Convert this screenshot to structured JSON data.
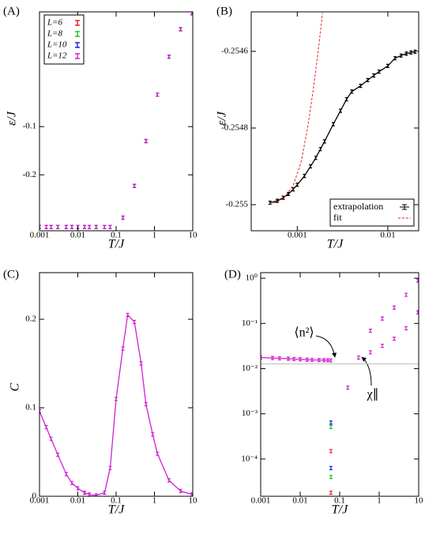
{
  "chart_data": [
    {
      "type": "scatter",
      "panel_label": "(A)",
      "xlabel": "T/J",
      "ylabel": "ε/J",
      "xscale": "log",
      "yscale": "linear",
      "xlim": [
        0.001,
        10
      ],
      "ylim": [
        -0.316,
        0.138
      ],
      "xticks": [
        0.001,
        0.01,
        0.1,
        1,
        10
      ],
      "yticks": [
        -0.2,
        -0.1
      ],
      "legend": "upper left",
      "series": [
        {
          "name": "L=6",
          "color": "#e8202a",
          "line": false,
          "x": [
            0.001,
            0.0015,
            0.002,
            0.003,
            0.005,
            0.007,
            0.01,
            0.015,
            0.02,
            0.03,
            0.05,
            0.07,
            0.15,
            0.3,
            0.6,
            1.2,
            2.4,
            4.8,
            9.5
          ],
          "values": [
            -0.308,
            -0.308,
            -0.308,
            -0.308,
            -0.308,
            -0.308,
            -0.308,
            -0.308,
            -0.308,
            -0.308,
            -0.308,
            -0.308,
            -0.289,
            -0.223,
            -0.13,
            -0.034,
            0.045,
            0.102,
            0.135
          ]
        },
        {
          "name": "L=8",
          "color": "#22c02a",
          "line": false,
          "x": [
            0.001,
            0.0015,
            0.002,
            0.003,
            0.005,
            0.007,
            0.01,
            0.015,
            0.02,
            0.03,
            0.05,
            0.07,
            0.15,
            0.3,
            0.6,
            1.2,
            2.4,
            4.8,
            9.5
          ],
          "values": [
            -0.308,
            -0.308,
            -0.308,
            -0.308,
            -0.308,
            -0.308,
            -0.308,
            -0.308,
            -0.308,
            -0.308,
            -0.308,
            -0.308,
            -0.289,
            -0.223,
            -0.13,
            -0.034,
            0.045,
            0.102,
            0.135
          ]
        },
        {
          "name": "L=10",
          "color": "#2020e0",
          "line": false,
          "x": [
            0.001,
            0.0015,
            0.002,
            0.003,
            0.005,
            0.007,
            0.01,
            0.015,
            0.02,
            0.03,
            0.05,
            0.07,
            0.15,
            0.3,
            0.6,
            1.2,
            2.4,
            4.8,
            9.5
          ],
          "values": [
            -0.308,
            -0.308,
            -0.308,
            -0.308,
            -0.308,
            -0.308,
            -0.308,
            -0.308,
            -0.308,
            -0.308,
            -0.308,
            -0.308,
            -0.289,
            -0.223,
            -0.13,
            -0.034,
            0.045,
            0.102,
            0.135
          ]
        },
        {
          "name": "L=12",
          "color": "#d020d0",
          "line": false,
          "x": [
            0.001,
            0.0015,
            0.002,
            0.003,
            0.005,
            0.007,
            0.01,
            0.015,
            0.02,
            0.03,
            0.05,
            0.07,
            0.15,
            0.3,
            0.6,
            1.2,
            2.4,
            4.8,
            9.5
          ],
          "values": [
            -0.308,
            -0.308,
            -0.308,
            -0.308,
            -0.308,
            -0.308,
            -0.308,
            -0.308,
            -0.308,
            -0.308,
            -0.308,
            -0.308,
            -0.289,
            -0.223,
            -0.13,
            -0.034,
            0.045,
            0.102,
            0.135
          ]
        }
      ]
    },
    {
      "type": "scatter",
      "panel_label": "(B)",
      "xlabel": "T/J",
      "ylabel": "ε/J",
      "xscale": "log",
      "yscale": "linear",
      "xlim": [
        0.00031,
        0.0219
      ],
      "ylim": [
        -0.255068,
        -0.254497
      ],
      "xticks": [
        0.001,
        0.01
      ],
      "yticks": [
        -0.255,
        -0.2548,
        -0.2546
      ],
      "legend": "lower right",
      "series": [
        {
          "name": "extrapolation",
          "color": "#000000",
          "line": true,
          "markers": true,
          "x": [
            0.0005,
            0.0006,
            0.0007,
            0.0008,
            0.0009,
            0.001,
            0.0012,
            0.0014,
            0.0016,
            0.0018,
            0.002,
            0.0025,
            0.003,
            0.0035,
            0.004,
            0.005,
            0.006,
            0.007,
            0.008,
            0.01,
            0.012,
            0.014,
            0.016,
            0.018,
            0.02
          ],
          "values": [
            -0.254995,
            -0.25499,
            -0.254982,
            -0.254972,
            -0.25496,
            -0.254948,
            -0.254925,
            -0.2549,
            -0.254878,
            -0.254855,
            -0.254835,
            -0.25479,
            -0.254755,
            -0.254725,
            -0.254705,
            -0.25469,
            -0.254675,
            -0.254663,
            -0.254653,
            -0.254638,
            -0.254618,
            -0.254611,
            -0.254606,
            -0.254603,
            -0.254601
          ]
        },
        {
          "name": "fit",
          "color": "#e8202a",
          "line": true,
          "markers": false,
          "dash": true,
          "x": [
            0.0005,
            0.0007,
            0.0009,
            0.0011,
            0.0013,
            0.0015,
            0.0017,
            0.0019
          ],
          "values": [
            -0.255,
            -0.254985,
            -0.25495,
            -0.25489,
            -0.2548,
            -0.2547,
            -0.2546,
            -0.2545
          ]
        }
      ]
    },
    {
      "type": "scatter",
      "panel_label": "(C)",
      "xlabel": "T/J",
      "ylabel": "C",
      "xscale": "log",
      "yscale": "linear",
      "xlim": [
        0.001,
        10
      ],
      "ylim": [
        0,
        0.2527
      ],
      "xticks": [
        0.001,
        0.01,
        0.1,
        1,
        10
      ],
      "yticks": [
        0,
        0.1,
        0.2
      ],
      "series": [
        {
          "color": "#d020d0",
          "line": true,
          "markers": true,
          "x": [
            0.001,
            0.0015,
            0.002,
            0.003,
            0.005,
            0.007,
            0.01,
            0.015,
            0.02,
            0.03,
            0.05,
            0.07,
            0.1,
            0.15,
            0.2,
            0.3,
            0.45,
            0.6,
            0.9,
            1.2,
            2.4,
            4.8,
            9.5
          ],
          "values": [
            0.096,
            0.078,
            0.065,
            0.047,
            0.025,
            0.015,
            0.009,
            0.004,
            0.002,
            0.001,
            0.004,
            0.032,
            0.11,
            0.167,
            0.205,
            0.197,
            0.15,
            0.104,
            0.07,
            0.048,
            0.018,
            0.006,
            0.002
          ]
        }
      ]
    },
    {
      "type": "scatter",
      "panel_label": "(D)",
      "xlabel": "T/J",
      "xscale": "log",
      "yscale": "log",
      "xlim": [
        0.001,
        10
      ],
      "ylim": [
        1.5e-05,
        1.33
      ],
      "xticks": [
        0.001,
        0.01,
        0.1,
        1,
        10
      ],
      "yticks": [
        {
          "value": 0.0001,
          "label": "10⁻⁴"
        },
        {
          "value": 0.001,
          "label": "10⁻³"
        },
        {
          "value": 0.01,
          "label": "10⁻²"
        },
        {
          "value": 0.1,
          "label": "10⁻¹"
        },
        {
          "value": 1,
          "label": "10⁰"
        }
      ],
      "hline": {
        "value": 0.0128,
        "color": "#bbbbbb"
      },
      "annotations": [
        {
          "text": "⟨n²⟩"
        },
        {
          "text": "χ∥"
        }
      ],
      "series": [
        {
          "color": "#d020d0",
          "line": true,
          "markers": true,
          "x": [
            0.001,
            0.002,
            0.003,
            0.005,
            0.007,
            0.01,
            0.015,
            0.02,
            0.03,
            0.04,
            0.05,
            0.06
          ],
          "values": [
            0.0176,
            0.0172,
            0.0169,
            0.0166,
            0.0163,
            0.0161,
            0.0158,
            0.0156,
            0.0155,
            0.0154,
            0.0153,
            0.0152
          ]
        },
        {
          "color": "#d020d0",
          "line": false,
          "x": [
            0.16,
            0.3,
            0.6,
            1.2,
            2.4,
            4.8,
            9.5
          ],
          "values": [
            0.0038,
            0.0176,
            0.023,
            0.032,
            0.046,
            0.078,
            0.176
          ]
        },
        {
          "color": "#d020d0",
          "line": false,
          "x": [
            0.6,
            1.2,
            2.4,
            4.8,
            9.5
          ],
          "values": [
            0.069,
            0.128,
            0.224,
            0.43,
            0.89
          ]
        },
        {
          "color": "#2020e0",
          "line": false,
          "x": [
            0.06,
            0.06
          ],
          "values": [
            0.00064,
            6.3e-05
          ]
        },
        {
          "color": "#22c02a",
          "line": false,
          "x": [
            0.06,
            0.06
          ],
          "values": [
            0.00051,
            4e-05
          ]
        },
        {
          "color": "#e8202a",
          "line": false,
          "x": [
            0.06,
            0.06
          ],
          "values": [
            0.00015,
            1.8e-05
          ]
        }
      ]
    }
  ]
}
